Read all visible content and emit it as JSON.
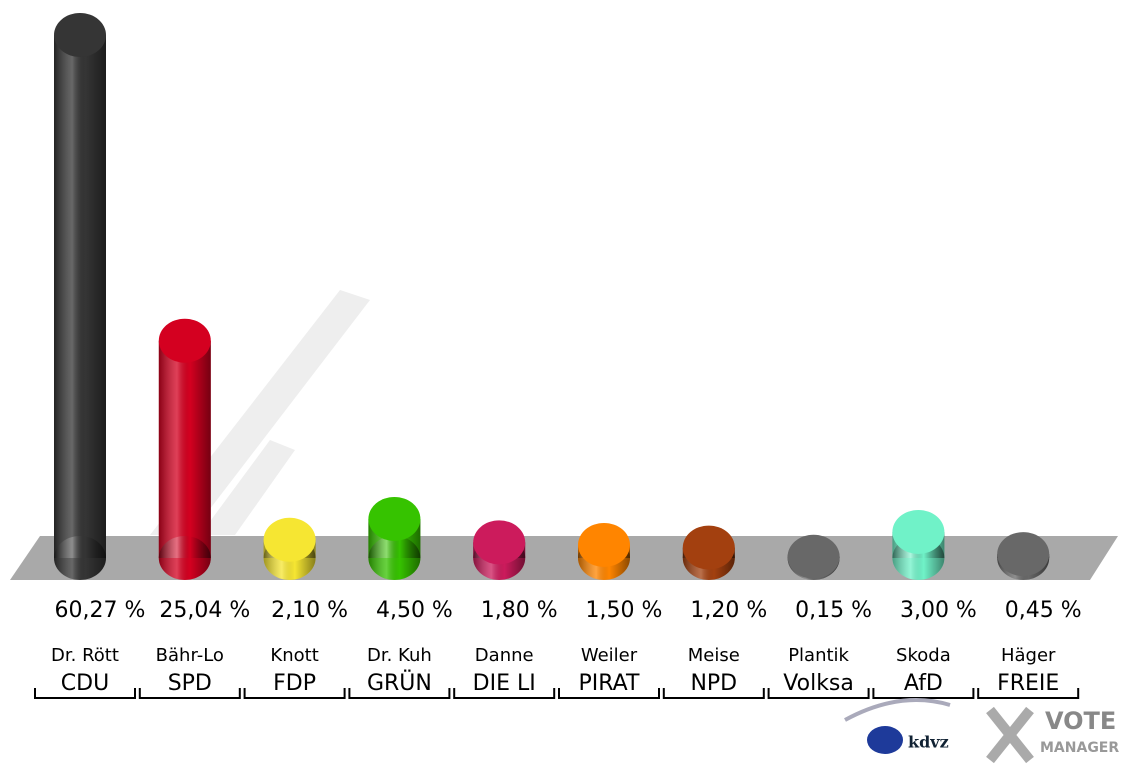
{
  "chart_data": {
    "type": "bar",
    "candidates": [
      "Dr. Rött",
      "Bähr-Lo",
      "Knott",
      "Dr. Kuh",
      "Danne",
      "Weiler",
      "Meise",
      "Plantik",
      "Skoda",
      "Häger"
    ],
    "categories": [
      "CDU",
      "SPD",
      "FDP",
      "GRÜN",
      "DIE LI",
      "PIRAT",
      "NPD",
      "Volksa",
      "AfD",
      "FREIE"
    ],
    "values": [
      60.27,
      25.04,
      2.1,
      4.5,
      1.8,
      1.5,
      1.2,
      0.15,
      3.0,
      0.45
    ],
    "value_labels": [
      "60,27 %",
      "25,04 %",
      "2,10 %",
      "4,50 %",
      "1,80 %",
      "1,50 %",
      "1,20 %",
      "0,15 %",
      "3,00 %",
      "0,45 %"
    ],
    "colors": [
      "#353535",
      "#d40020",
      "#f6e632",
      "#36c300",
      "#cc1b5c",
      "#ff8500",
      "#a3400f",
      "#686868",
      "#70f2c8",
      "#686868"
    ]
  },
  "logo": {
    "kdvz": "kdvz",
    "vote": "VOTE",
    "manager": "MANAGER"
  }
}
